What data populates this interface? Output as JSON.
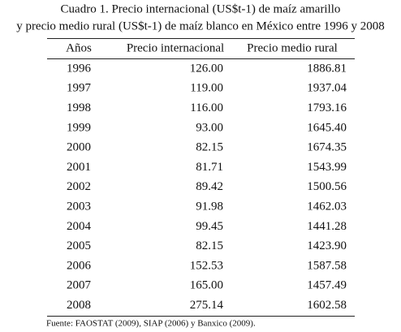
{
  "header": {
    "title_lines": [
      "Cuadro 1. Precio internacional (US$t-1) de maíz amarillo",
      "y precio medio rural (US$t-1) de maíz blanco en México entre 1996 y 2008"
    ]
  },
  "table": {
    "columns": [
      "Años",
      "Precio internacional",
      "Precio medio rural"
    ],
    "rows": [
      [
        "1996",
        "126.00",
        "1886.81"
      ],
      [
        "1997",
        "119.00",
        "1937.04"
      ],
      [
        "1998",
        "116.00",
        "1793.16"
      ],
      [
        "1999",
        "93.00",
        "1645.40"
      ],
      [
        "2000",
        "82.15",
        "1674.35"
      ],
      [
        "2001",
        "81.71",
        "1543.99"
      ],
      [
        "2002",
        "89.42",
        "1500.56"
      ],
      [
        "2003",
        "91.98",
        "1462.03"
      ],
      [
        "2004",
        "99.45",
        "1441.28"
      ],
      [
        "2005",
        "82.15",
        "1423.90"
      ],
      [
        "2006",
        "152.53",
        "1587.58"
      ],
      [
        "2007",
        "165.00",
        "1457.49"
      ],
      [
        "2008",
        "275.14",
        "1602.58"
      ]
    ]
  },
  "footer": {
    "source": "Fuente: FAOSTAT (2009), SIAP (2006) y Banxico (2009)."
  }
}
